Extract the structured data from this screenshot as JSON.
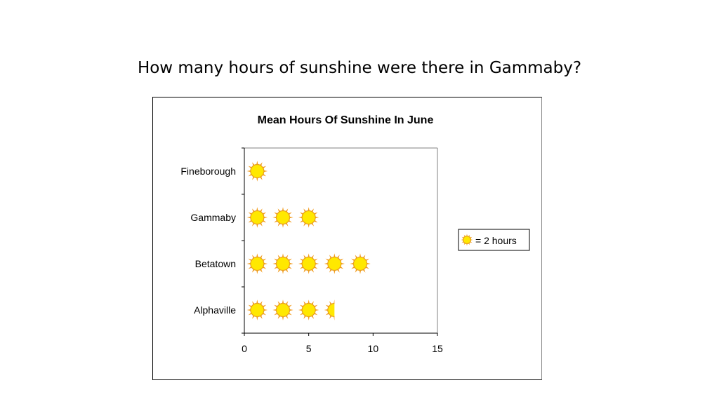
{
  "question": "How many hours of sunshine were there in Gammaby?",
  "legend": {
    "icon": "sun-icon",
    "label": "= 2 hours"
  },
  "colors": {
    "sun_fill": "#FFE800",
    "sun_rays": "#F29A1A",
    "sun_outline": "#E8A020"
  },
  "chart_data": {
    "type": "bar",
    "subtype": "pictogram",
    "title": "Mean Hours Of Sunshine In June",
    "categories": [
      "Fineborough",
      "Gammaby",
      "Betatown",
      "Alphaville"
    ],
    "values": [
      2,
      6,
      10,
      7
    ],
    "unit_per_icon": 2,
    "xlim": [
      0,
      15
    ],
    "xticks": [
      "0",
      "5",
      "10",
      "15"
    ],
    "grid": false,
    "legend_position": "right"
  }
}
